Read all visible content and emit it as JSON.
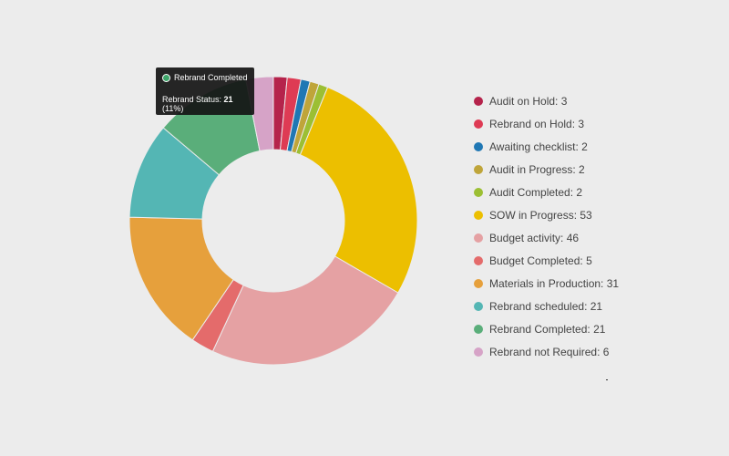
{
  "chart_data": {
    "type": "pie",
    "title": "",
    "donut": true,
    "legend_position": "right",
    "slices": [
      {
        "label": "Audit on Hold",
        "value": 3,
        "color": "#b5234b"
      },
      {
        "label": "Rebrand on Hold",
        "value": 3,
        "color": "#de3b54"
      },
      {
        "label": "Awaiting checklist",
        "value": 2,
        "color": "#1f77b4"
      },
      {
        "label": "Audit in Progress",
        "value": 2,
        "color": "#bfa53a"
      },
      {
        "label": "Audit Completed",
        "value": 2,
        "color": "#9cbf33"
      },
      {
        "label": "SOW in Progress",
        "value": 53,
        "color": "#ecbf00"
      },
      {
        "label": "Budget activity",
        "value": 46,
        "color": "#e5a1a3"
      },
      {
        "label": "Budget Completed",
        "value": 5,
        "color": "#e46b6b"
      },
      {
        "label": "Materials in Production",
        "value": 31,
        "color": "#e6a03c"
      },
      {
        "label": "Rebrand scheduled",
        "value": 21,
        "color": "#54b6b4"
      },
      {
        "label": "Rebrand Completed",
        "value": 21,
        "color": "#5aae7a"
      },
      {
        "label": "Rebrand not Required",
        "value": 6,
        "color": "#d6a3c7"
      }
    ]
  },
  "tooltip": {
    "series_name": "Rebrand Completed",
    "metric_label": "Rebrand Status: ",
    "value": "21",
    "percent": " (11%)",
    "dot_color": "#3ea66a"
  },
  "colors": {
    "background": "#ececec",
    "legend_text": "#444444"
  }
}
